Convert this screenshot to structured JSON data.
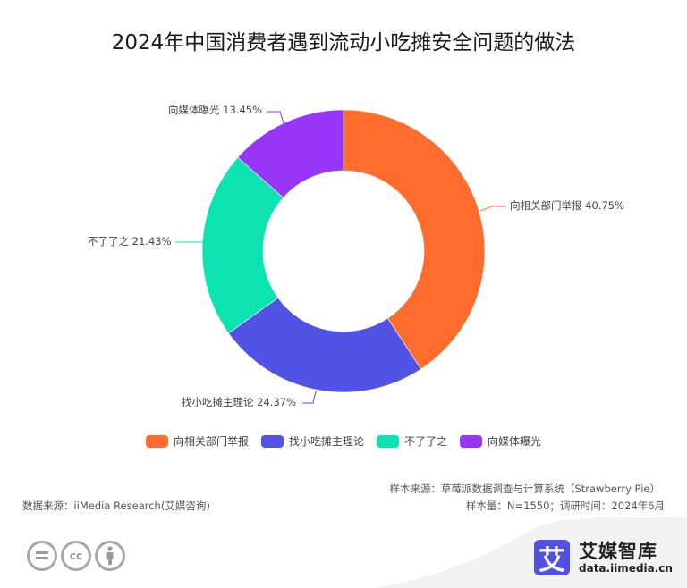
{
  "title": "2024年中国消费者遇到流动小吃摊安全问题的做法",
  "chart_data": {
    "type": "pie",
    "subtype": "donut",
    "title": "2024年中国消费者遇到流动小吃摊安全问题的做法",
    "categories": [
      "向相关部门举报",
      "找小吃摊主理论",
      "不了了之",
      "向媒体曝光"
    ],
    "values": [
      40.75,
      24.37,
      21.43,
      13.45
    ],
    "unit": "%",
    "colors": [
      "#ff6d2e",
      "#5152e6",
      "#0ce3b0",
      "#9735f8"
    ],
    "labels": [
      "向相关部门举报 40.75%",
      "找小吃摊主理论 24.37%",
      "不了了之 21.43%",
      "向媒体曝光 13.45%"
    ],
    "legend_position": "bottom",
    "inner_radius_ratio": 0.57
  },
  "legend": [
    {
      "label": "向相关部门举报",
      "color": "#ff6d2e"
    },
    {
      "label": "找小吃摊主理论",
      "color": "#5152e6"
    },
    {
      "label": "不了了之",
      "color": "#0ce3b0"
    },
    {
      "label": "向媒体曝光",
      "color": "#9735f8"
    }
  ],
  "source": {
    "data_source": "数据来源：iiMedia Research(艾媒咨询)",
    "sample_source": "样本来源：草莓派数据调查与计算系统（Strawberry Pie）",
    "sample_info": "样本量：N=1550；调研时间：2024年6月"
  },
  "footer": {
    "license_icons": [
      "nd-icon",
      "cc-icon",
      "by-icon"
    ],
    "logo_char": "艾",
    "logo_name": "艾媒智库",
    "logo_url": "data.iimedia.cn"
  }
}
